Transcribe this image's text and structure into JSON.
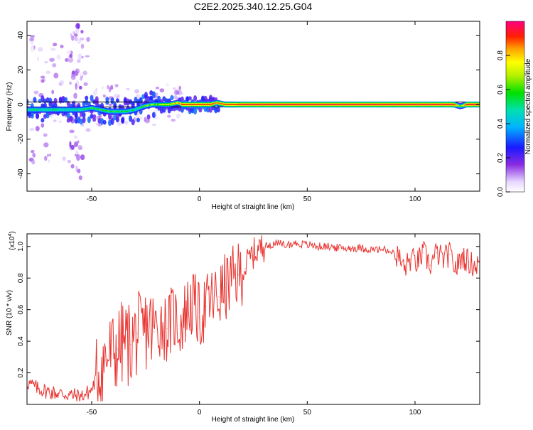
{
  "title": "C2E2.2025.340.12.25.G04",
  "chart_data": [
    {
      "type": "heatmap",
      "xlabel": "Height of straight line (km)",
      "ylabel": "Frequency (Hz)",
      "xlim": [
        -80,
        130
      ],
      "ylim": [
        -50,
        48
      ],
      "xticks": [
        -50,
        0,
        50,
        100
      ],
      "yticks": [
        -40,
        -20,
        0,
        20,
        40
      ],
      "grid": false,
      "colorbar": {
        "label": "Normalized spectral amplitude",
        "range": [
          0,
          1
        ],
        "ticks": [
          "0.0",
          "0.2",
          "0.4",
          "0.6",
          "0.8"
        ]
      },
      "reference_line_hz": 0,
      "ridge": {
        "height_km": [
          -78,
          -72,
          -66,
          -60,
          -55,
          -50,
          -46,
          -42,
          -38,
          -34,
          -30,
          -26,
          -22,
          -18,
          -14,
          -10,
          -8,
          -4,
          0,
          5,
          8,
          12,
          16,
          20,
          40,
          60,
          80,
          100,
          118,
          121,
          124,
          130
        ],
        "freq_hz": [
          -3,
          -3,
          -3,
          -3,
          -3,
          -2,
          -3,
          -4,
          -4,
          -4,
          -3,
          -1,
          0,
          0,
          0,
          1,
          0,
          0,
          0,
          0,
          1,
          0,
          0,
          0,
          0,
          0,
          0,
          0,
          0,
          -1,
          0,
          0
        ],
        "amplitude": [
          0.5,
          0.45,
          0.5,
          0.45,
          0.5,
          0.55,
          0.6,
          0.6,
          0.55,
          0.55,
          0.5,
          0.6,
          0.65,
          0.7,
          0.75,
          0.8,
          0.9,
          0.9,
          0.9,
          0.9,
          0.85,
          0.9,
          0.9,
          0.95,
          0.95,
          0.95,
          0.95,
          0.95,
          0.95,
          0.6,
          0.95,
          0.95
        ]
      }
    },
    {
      "type": "line",
      "xlabel": "Height of straight line (km)",
      "ylabel": "SNR (10 * v/v)",
      "y_multiplier": "(x10",
      "y_multiplier_exp": "4",
      "y_multiplier_close": ")",
      "xlim": [
        -80,
        130
      ],
      "ylim": [
        0,
        1.08
      ],
      "xticks": [
        -50,
        0,
        50,
        100
      ],
      "yticks": [
        0.2,
        0.4,
        0.6,
        0.8,
        1.0
      ],
      "color": "#e8322e",
      "series": [
        {
          "x": [
            -80,
            -75,
            -70,
            -65,
            -60,
            -55,
            -50,
            -47,
            -44,
            -41,
            -38,
            -35,
            -32,
            -29,
            -27,
            -24,
            -21,
            -18,
            -15,
            -12,
            -9,
            -6,
            -3,
            0,
            3,
            6,
            9,
            12,
            15,
            18,
            21,
            24,
            27,
            30,
            35,
            40,
            45,
            50,
            55,
            60,
            65,
            70,
            75,
            80,
            85,
            88,
            92,
            95,
            98,
            101,
            104,
            107,
            110,
            113,
            116,
            119,
            122,
            125,
            128,
            130
          ],
          "y": [
            0.14,
            0.1,
            0.08,
            0.07,
            0.06,
            0.05,
            0.09,
            0.2,
            0.28,
            0.32,
            0.35,
            0.4,
            0.38,
            0.45,
            0.42,
            0.5,
            0.46,
            0.52,
            0.48,
            0.56,
            0.5,
            0.6,
            0.64,
            0.55,
            0.62,
            0.66,
            0.68,
            0.74,
            0.78,
            0.82,
            0.86,
            0.94,
            0.98,
            1.0,
            1.02,
            1.01,
            1.02,
            1.01,
            1.0,
            1.0,
            0.99,
            0.99,
            0.99,
            0.98,
            0.98,
            0.97,
            0.94,
            0.86,
            0.92,
            0.9,
            0.96,
            0.88,
            0.96,
            0.92,
            0.95,
            0.86,
            0.94,
            0.9,
            0.88,
            0.9
          ]
        }
      ]
    }
  ]
}
